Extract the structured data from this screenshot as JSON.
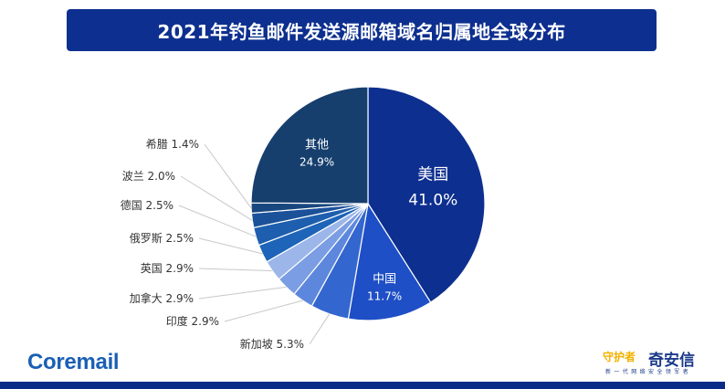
{
  "header": {
    "title": "2021年钓鱼邮件发送源邮箱域名归属地全球分布"
  },
  "colors": {
    "title_bg": "#0d2f8f",
    "bottom_bar": "#0a2a88",
    "brand_blue": "#1a5fb4",
    "label_line": "#c8c8c8",
    "label_text": "#333333"
  },
  "chart_data": {
    "type": "pie",
    "title": "2021年钓鱼邮件发送源邮箱域名归属地全球分布",
    "start_angle_deg": 0,
    "direction": "clockwise",
    "slices": [
      {
        "name": "美国",
        "value": 41.0,
        "label": "41.0%",
        "color": "#0d2f8f",
        "inside": true
      },
      {
        "name": "中国",
        "value": 11.7,
        "label": "11.7%",
        "color": "#1f4fc6",
        "inside": true
      },
      {
        "name": "新加坡",
        "value": 5.3,
        "label": "5.3%",
        "color": "#3466cf",
        "inside": false
      },
      {
        "name": "印度",
        "value": 2.9,
        "label": "2.9%",
        "color": "#5c87dc",
        "inside": false
      },
      {
        "name": "加拿大",
        "value": 2.9,
        "label": "2.9%",
        "color": "#7a9de3",
        "inside": false
      },
      {
        "name": "英国",
        "value": 2.9,
        "label": "2.9%",
        "color": "#9cb6ea",
        "inside": false
      },
      {
        "name": "俄罗斯",
        "value": 2.5,
        "label": "2.5%",
        "color": "#1e64b8",
        "inside": false
      },
      {
        "name": "德国",
        "value": 2.5,
        "label": "2.5%",
        "color": "#1e5eae",
        "inside": false
      },
      {
        "name": "波兰",
        "value": 2.0,
        "label": "2.0%",
        "color": "#1b5199",
        "inside": false
      },
      {
        "name": "希腊",
        "value": 1.4,
        "label": "1.4%",
        "color": "#18477f",
        "inside": false
      },
      {
        "name": "其他",
        "value": 24.9,
        "label": "24.9%",
        "color": "#163f6e",
        "inside": true
      }
    ]
  },
  "branding": {
    "left_logo": "Coremail",
    "right_mark": "守护者",
    "right_name": "奇安信",
    "right_tagline": "新一代网络安全领军者"
  }
}
